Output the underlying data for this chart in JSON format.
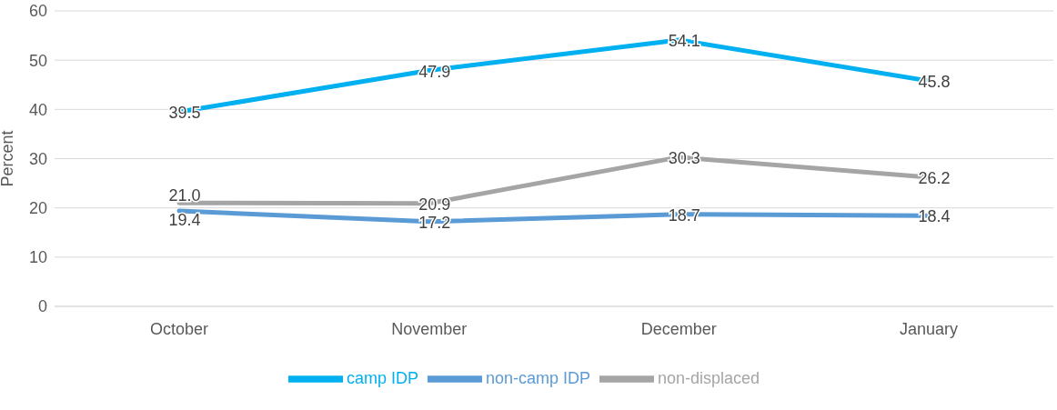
{
  "chart_data": {
    "type": "line",
    "ylabel": "Percent",
    "categories": [
      "October",
      "November",
      "December",
      "January"
    ],
    "series": [
      {
        "name": "camp IDP",
        "color": "#00b0f0",
        "values": [
          39.5,
          47.9,
          54.1,
          45.8
        ],
        "value_labels": [
          "39.5",
          "47.9",
          "54.1",
          "45.8"
        ]
      },
      {
        "name": "non-camp IDP",
        "color": "#5b9bd5",
        "values": [
          19.4,
          17.2,
          18.7,
          18.4
        ],
        "value_labels": [
          "19.4",
          "17.2",
          "18.7",
          "18.4"
        ]
      },
      {
        "name": "non-displaced",
        "color": "#a5a5a5",
        "values": [
          21.0,
          20.9,
          30.3,
          26.2
        ],
        "value_labels": [
          "21.0",
          "20.9",
          "30.3",
          "26.2"
        ]
      }
    ],
    "ylim": [
      0,
      60
    ],
    "yticks": [
      0,
      10,
      20,
      30,
      40,
      50,
      60
    ],
    "grid": "y",
    "legend": "bottom",
    "marker": "none"
  }
}
